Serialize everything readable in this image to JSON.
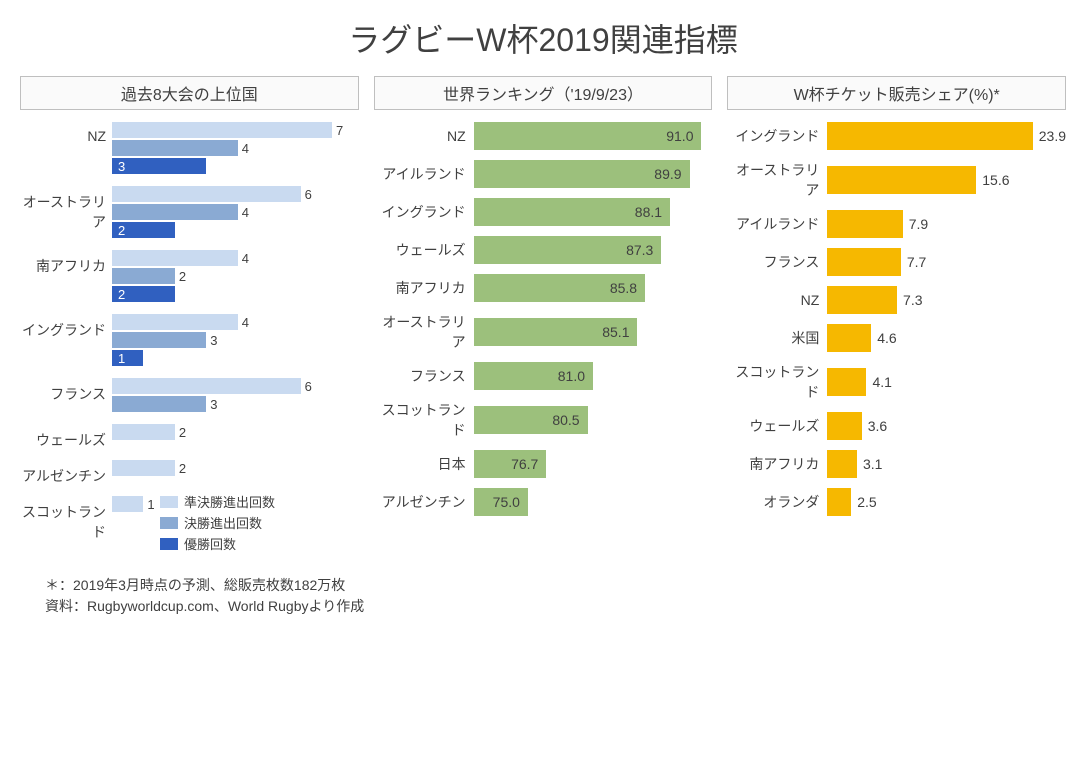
{
  "title": "ラグビーW杯2019関連指標",
  "chart1": {
    "title": "過去8大会の上位国",
    "max": 7,
    "colors": {
      "semifinal": "#c9daf0",
      "final": "#8aaad3",
      "champion": "#3060c0"
    },
    "legend": [
      {
        "label": "準決勝進出回数",
        "color": "#c9daf0"
      },
      {
        "label": "決勝進出回数",
        "color": "#8aaad3"
      },
      {
        "label": "優勝回数",
        "color": "#3060c0"
      }
    ],
    "rows": [
      {
        "label": "NZ",
        "semifinal": 7,
        "final": 4,
        "champion": 3
      },
      {
        "label": "オーストラリア",
        "semifinal": 6,
        "final": 4,
        "champion": 2
      },
      {
        "label": "南アフリカ",
        "semifinal": 4,
        "final": 2,
        "champion": 2
      },
      {
        "label": "イングランド",
        "semifinal": 4,
        "final": 3,
        "champion": 1
      },
      {
        "label": "フランス",
        "semifinal": 6,
        "final": 3,
        "champion": null
      },
      {
        "label": "ウェールズ",
        "semifinal": 2,
        "final": null,
        "champion": null
      },
      {
        "label": "アルゼンチン",
        "semifinal": 2,
        "final": null,
        "champion": null
      },
      {
        "label": "スコットランド",
        "semifinal": 1,
        "final": null,
        "champion": null
      }
    ]
  },
  "chart2": {
    "title": "世界ランキング（'19/9/23）",
    "color": "#9cc07c",
    "min": 70,
    "max": 92,
    "rows": [
      {
        "label": "NZ",
        "value": 91.0
      },
      {
        "label": "アイルランド",
        "value": 89.9
      },
      {
        "label": "イングランド",
        "value": 88.1
      },
      {
        "label": "ウェールズ",
        "value": 87.3
      },
      {
        "label": "南アフリカ",
        "value": 85.8
      },
      {
        "label": "オーストラリア",
        "value": 85.1
      },
      {
        "label": "フランス",
        "value": 81.0
      },
      {
        "label": "スコットランド",
        "value": 80.5
      },
      {
        "label": "日本",
        "value": 76.7
      },
      {
        "label": "アルゼンチン",
        "value": 75.0
      }
    ]
  },
  "chart3": {
    "title": "W杯チケット販売シェア(%)*",
    "color": "#f6b800",
    "max": 25,
    "rows": [
      {
        "label": "イングランド",
        "value": 23.9
      },
      {
        "label": "オーストラリア",
        "value": 15.6
      },
      {
        "label": "アイルランド",
        "value": 7.9
      },
      {
        "label": "フランス",
        "value": 7.7
      },
      {
        "label": "NZ",
        "value": 7.3
      },
      {
        "label": "米国",
        "value": 4.6
      },
      {
        "label": "スコットランド",
        "value": 4.1
      },
      {
        "label": "ウェールズ",
        "value": 3.6
      },
      {
        "label": "南アフリカ",
        "value": 3.1
      },
      {
        "label": "オランダ",
        "value": 2.5
      }
    ]
  },
  "footnote1": "＊：2019年3月時点の予測、総販売枚数182万枚",
  "footnote2": "資料：Rugbyworldcup.com、World Rugbyより作成"
}
